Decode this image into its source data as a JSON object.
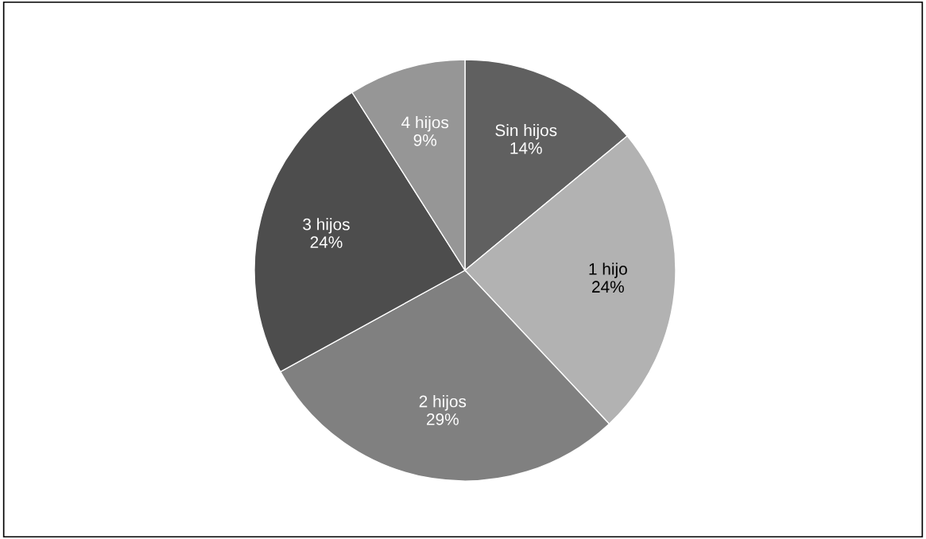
{
  "chart_data": {
    "type": "pie",
    "categories": [
      "Sin hijos",
      "1 hijo",
      "2 hijos",
      "3 hijos",
      "4 hijos"
    ],
    "values": [
      14,
      24,
      29,
      24,
      9
    ],
    "colors": [
      "#606060",
      "#b2b2b2",
      "#808080",
      "#4d4d4d",
      "#969696"
    ],
    "value_labels": [
      "14%",
      "24%",
      "29%",
      "24%",
      "9%"
    ],
    "legend": false
  }
}
